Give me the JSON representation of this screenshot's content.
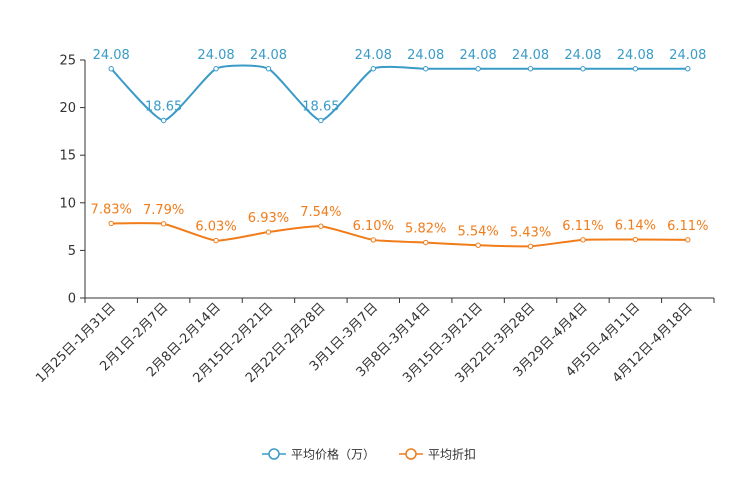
{
  "chart_data": {
    "type": "line",
    "title": "",
    "xlabel": "",
    "ylabel": "",
    "ylim": [
      0,
      25
    ],
    "yticks": [
      0,
      5,
      10,
      15,
      20,
      25
    ],
    "grid": false,
    "legend_position": "bottom-center",
    "categories": [
      "1月25日-1月31日",
      "2月1日-2月7日",
      "2月8日-2月14日",
      "2月15日-2月21日",
      "2月22日-2月28日",
      "3月1日-3月7日",
      "3月8日-3月14日",
      "3月15日-3月21日",
      "3月22日-3月28日",
      "3月29日-4月4日",
      "4月5日-4月11日",
      "4月12日-4月18日"
    ],
    "series": [
      {
        "name": "平均价格（万）",
        "color": "#3a9bc8",
        "values": [
          24.08,
          18.65,
          24.08,
          24.08,
          18.65,
          24.08,
          24.08,
          24.08,
          24.08,
          24.08,
          24.08,
          24.08
        ],
        "labels": [
          "24.08",
          "18.65",
          "24.08",
          "24.08",
          "18.65",
          "24.08",
          "24.08",
          "24.08",
          "24.08",
          "24.08",
          "24.08",
          "24.08"
        ]
      },
      {
        "name": "平均折扣",
        "color": "#f07c1a",
        "values": [
          7.83,
          7.79,
          6.03,
          6.93,
          7.54,
          6.1,
          5.82,
          5.54,
          5.43,
          6.11,
          6.14,
          6.11
        ],
        "labels": [
          "7.83%",
          "7.79%",
          "6.03%",
          "6.93%",
          "7.54%",
          "6.10%",
          "5.82%",
          "5.54%",
          "5.43%",
          "6.11%",
          "6.14%",
          "6.11%"
        ]
      }
    ]
  }
}
